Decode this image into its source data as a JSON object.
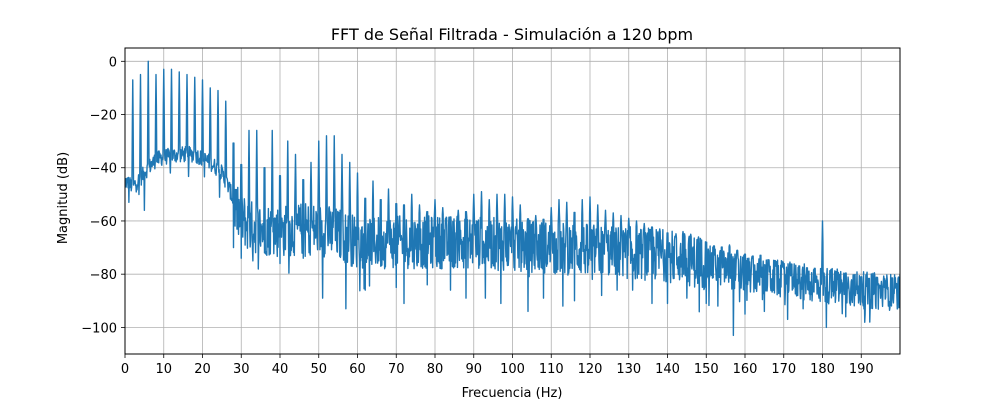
{
  "chart_data": {
    "type": "line",
    "title": "FFT de Señal Filtrada - Simulación a 120 bpm",
    "xlabel": "Frecuencia (Hz)",
    "ylabel": "Magnitud (dB)",
    "xlim": [
      0,
      200
    ],
    "ylim": [
      -110,
      5
    ],
    "x_ticks": [
      0,
      10,
      20,
      30,
      40,
      50,
      60,
      70,
      80,
      90,
      100,
      110,
      120,
      130,
      140,
      150,
      160,
      170,
      180,
      190
    ],
    "x_tick_labels": [
      "0",
      "10",
      "20",
      "30",
      "40",
      "50",
      "60",
      "70",
      "80",
      "90",
      "100",
      "110",
      "120",
      "130",
      "140",
      "150",
      "160",
      "170",
      "180",
      "190"
    ],
    "y_ticks": [
      0,
      -20,
      -40,
      -60,
      -80,
      -100
    ],
    "y_tick_labels": [
      "0",
      "−20",
      "−40",
      "−60",
      "−80",
      "−100"
    ],
    "grid": true,
    "line_color": "#1f77b4",
    "series": [
      {
        "name": "",
        "baseline": [
          [
            0,
            -45
          ],
          [
            2,
            -47
          ],
          [
            4,
            -44
          ],
          [
            6,
            -40
          ],
          [
            8,
            -37
          ],
          [
            10,
            -36
          ],
          [
            14,
            -35
          ],
          [
            18,
            -35
          ],
          [
            22,
            -38
          ],
          [
            25,
            -42
          ],
          [
            27,
            -48
          ],
          [
            29,
            -57
          ],
          [
            32,
            -62
          ],
          [
            36,
            -63
          ],
          [
            40,
            -64
          ],
          [
            45,
            -63
          ],
          [
            50,
            -63
          ],
          [
            55,
            -65
          ],
          [
            60,
            -68
          ],
          [
            65,
            -68
          ],
          [
            70,
            -68
          ],
          [
            80,
            -68
          ],
          [
            90,
            -68
          ],
          [
            100,
            -69
          ],
          [
            110,
            -70
          ],
          [
            120,
            -71
          ],
          [
            130,
            -72
          ],
          [
            140,
            -73
          ],
          [
            150,
            -76
          ],
          [
            160,
            -80
          ],
          [
            170,
            -82
          ],
          [
            180,
            -84
          ],
          [
            190,
            -86
          ],
          [
            200,
            -87
          ]
        ],
        "peaks": [
          [
            2,
            -7
          ],
          [
            4,
            -5
          ],
          [
            6,
            0
          ],
          [
            8,
            -5
          ],
          [
            10,
            -3
          ],
          [
            12,
            -3
          ],
          [
            14,
            -4
          ],
          [
            16,
            -5
          ],
          [
            18,
            -6
          ],
          [
            20,
            -7
          ],
          [
            22,
            -10
          ],
          [
            24,
            -11
          ],
          [
            26,
            -15
          ],
          [
            28,
            -17
          ],
          [
            30,
            -27
          ],
          [
            32,
            -26
          ],
          [
            34,
            -26
          ],
          [
            36,
            -25
          ],
          [
            38,
            -26
          ],
          [
            40,
            -30
          ],
          [
            42,
            -30
          ],
          [
            44,
            -35
          ],
          [
            46,
            -34
          ],
          [
            48,
            -38
          ],
          [
            50,
            -30
          ],
          [
            52,
            -28
          ],
          [
            54,
            -28
          ],
          [
            56,
            -35
          ],
          [
            58,
            -38
          ],
          [
            60,
            -42
          ],
          [
            62,
            -43
          ],
          [
            64,
            -45
          ],
          [
            66,
            -44
          ],
          [
            68,
            -48
          ],
          [
            70,
            -47
          ],
          [
            72,
            -48
          ],
          [
            74,
            -50
          ],
          [
            76,
            -54
          ],
          [
            78,
            -53
          ],
          [
            80,
            -52
          ],
          [
            82,
            -55
          ],
          [
            84,
            -57
          ],
          [
            86,
            -56
          ],
          [
            88,
            -53
          ],
          [
            90,
            -50
          ],
          [
            92,
            -49
          ],
          [
            94,
            -52
          ],
          [
            96,
            -50
          ],
          [
            98,
            -50
          ],
          [
            100,
            -51
          ],
          [
            102,
            -54
          ],
          [
            104,
            -57
          ],
          [
            106,
            -58
          ],
          [
            108,
            -57
          ],
          [
            110,
            -55
          ],
          [
            112,
            -52
          ],
          [
            114,
            -53
          ],
          [
            116,
            -51
          ],
          [
            118,
            -52
          ],
          [
            120,
            -51
          ],
          [
            122,
            -54
          ],
          [
            124,
            -56
          ],
          [
            126,
            -57
          ],
          [
            128,
            -58
          ],
          [
            130,
            -59
          ],
          [
            132,
            -60
          ],
          [
            134,
            -61
          ],
          [
            136,
            -60
          ],
          [
            138,
            -63
          ],
          [
            140,
            -64
          ],
          [
            142,
            -66
          ],
          [
            144,
            -64
          ],
          [
            146,
            -65
          ],
          [
            148,
            -66
          ],
          [
            150,
            -68
          ],
          [
            152,
            -70
          ],
          [
            154,
            -70
          ],
          [
            156,
            -69
          ],
          [
            158,
            -71
          ],
          [
            160,
            -73
          ],
          [
            162,
            -74
          ],
          [
            164,
            -73
          ],
          [
            166,
            -76
          ],
          [
            168,
            -77
          ],
          [
            170,
            -78
          ],
          [
            172,
            -78
          ],
          [
            174,
            -79
          ],
          [
            176,
            -80
          ],
          [
            178,
            -80
          ],
          [
            180,
            -60
          ],
          [
            182,
            -81
          ],
          [
            184,
            -82
          ],
          [
            186,
            -82
          ],
          [
            188,
            -83
          ],
          [
            190,
            -84
          ],
          [
            192,
            -85
          ],
          [
            194,
            -84
          ],
          [
            196,
            -85
          ],
          [
            198,
            -84
          ]
        ],
        "dips": [
          [
            1,
            -53
          ],
          [
            5,
            -56
          ],
          [
            28,
            -70
          ],
          [
            30,
            -74
          ],
          [
            33,
            -75
          ],
          [
            36,
            -72
          ],
          [
            40,
            -76
          ],
          [
            46,
            -74
          ],
          [
            51,
            -89
          ],
          [
            57,
            -93
          ],
          [
            62,
            -86
          ],
          [
            66,
            -77
          ],
          [
            70,
            -85
          ],
          [
            72,
            -91
          ],
          [
            78,
            -84
          ],
          [
            84,
            -86
          ],
          [
            88,
            -89
          ],
          [
            93,
            -89
          ],
          [
            97,
            -91
          ],
          [
            104,
            -94
          ],
          [
            108,
            -89
          ],
          [
            113,
            -92
          ],
          [
            116,
            -90
          ],
          [
            123,
            -88
          ],
          [
            127,
            -86
          ],
          [
            131,
            -86
          ],
          [
            136,
            -91
          ],
          [
            140,
            -91
          ],
          [
            145,
            -89
          ],
          [
            150,
            -91
          ],
          [
            153,
            -92
          ],
          [
            157,
            -103
          ],
          [
            160,
            -95
          ],
          [
            165,
            -94
          ],
          [
            171,
            -97
          ],
          [
            175,
            -93
          ],
          [
            181,
            -100
          ],
          [
            186,
            -96
          ],
          [
            191,
            -95
          ],
          [
            197,
            -92
          ]
        ]
      }
    ]
  }
}
